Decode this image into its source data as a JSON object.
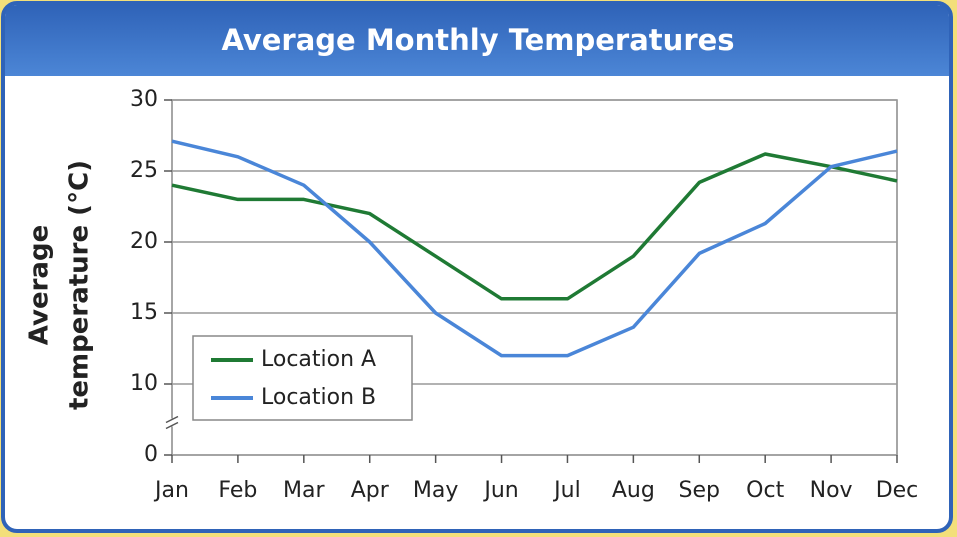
{
  "chart_data": {
    "type": "line",
    "title": "Average Monthly Temperatures",
    "ylabel": [
      "Average",
      "temperature (°C)"
    ],
    "categories": [
      "Jan",
      "Feb",
      "Mar",
      "Apr",
      "May",
      "Jun",
      "Jul",
      "Aug",
      "Sep",
      "Oct",
      "Nov",
      "Dec"
    ],
    "series": [
      {
        "name": "Location A",
        "color": "#1f7a34",
        "values": [
          24,
          23,
          23,
          22,
          19,
          16,
          16,
          19,
          24.2,
          26.2,
          25.3,
          24.3
        ]
      },
      {
        "name": "Location B",
        "color": "#4a86d8",
        "values": [
          27.1,
          26,
          24,
          20,
          15,
          12,
          12,
          14,
          19.2,
          21.3,
          25.3,
          26.4
        ]
      }
    ],
    "ylim": [
      0,
      30
    ],
    "yticks": [
      0,
      10,
      15,
      20,
      25,
      30
    ],
    "y_break": [
      0,
      10
    ],
    "grid": true,
    "legend": "lower left"
  }
}
